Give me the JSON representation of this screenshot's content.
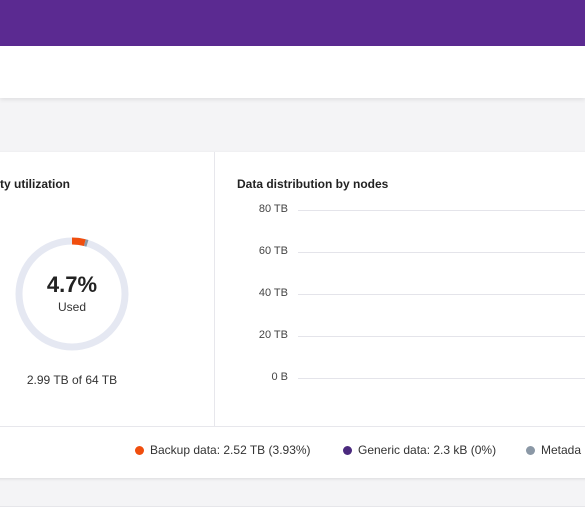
{
  "capacity": {
    "title": "city utilization",
    "percent_label": "4.7%",
    "percent_value": 4.7,
    "used_label": "Used",
    "capacity_text": "2.99 TB of 64 TB",
    "colors": {
      "backup": "#f04e0e",
      "metadata": "#8b98a6",
      "track": "#e5e8f2"
    }
  },
  "distribution": {
    "title": "Data distribution by nodes"
  },
  "chart_data": {
    "type": "bar",
    "title": "Data distribution by nodes",
    "categories": [],
    "series": [],
    "ylim": [
      0,
      80
    ],
    "yticks": [
      "80 TB",
      "60 TB",
      "40 TB",
      "20 TB",
      "0 B"
    ],
    "grid": true
  },
  "legend": [
    {
      "label": "Backup data: 2.52 TB (3.93%)",
      "color": "#f04e0e"
    },
    {
      "label": "Generic data: 2.3 kB (0%)",
      "color": "#4b2a7e"
    },
    {
      "label": "Metada",
      "color": "#8b98a6"
    }
  ]
}
